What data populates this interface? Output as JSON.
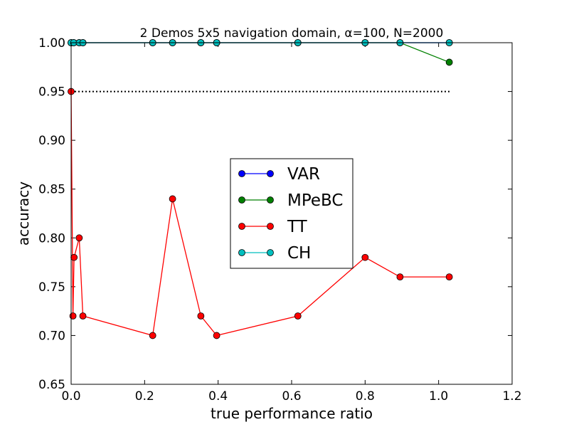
{
  "chart_data": {
    "type": "line",
    "title": "2 Demos 5x5 navigation domain, α=100, N=2000",
    "xlabel": "true performance ratio",
    "ylabel": "accuracy",
    "xlim": [
      0.0,
      1.2
    ],
    "ylim": [
      0.65,
      1.0
    ],
    "xticks": [
      "0.0",
      "0.2",
      "0.4",
      "0.6",
      "0.8",
      "1.0",
      "1.2"
    ],
    "yticks": [
      "0.65",
      "0.70",
      "0.75",
      "0.80",
      "0.85",
      "0.90",
      "0.95",
      "1.00"
    ],
    "grid": false,
    "legend_position": "center",
    "reference_line": {
      "y": 0.95,
      "x_range": [
        0.0,
        1.03
      ],
      "style": "dotted",
      "color": "#000000"
    },
    "series": [
      {
        "name": "VAR",
        "color": "#0000ff",
        "x": [
          0.0,
          0.007,
          0.022,
          0.032,
          0.222,
          0.276,
          0.353,
          0.396,
          0.617,
          0.8,
          0.895,
          1.029
        ],
        "y": [
          1.0,
          1.0,
          1.0,
          1.0,
          1.0,
          1.0,
          1.0,
          1.0,
          1.0,
          1.0,
          1.0,
          1.0
        ]
      },
      {
        "name": "MPeBC",
        "color": "#008000",
        "x": [
          0.0,
          0.007,
          0.022,
          0.032,
          0.222,
          0.276,
          0.353,
          0.396,
          0.617,
          0.8,
          0.895,
          1.029
        ],
        "y": [
          1.0,
          1.0,
          1.0,
          1.0,
          1.0,
          1.0,
          1.0,
          1.0,
          1.0,
          1.0,
          1.0,
          0.98
        ]
      },
      {
        "name": "TT",
        "color": "#ff0000",
        "x": [
          0.0,
          0.005,
          0.008,
          0.022,
          0.032,
          0.222,
          0.276,
          0.353,
          0.396,
          0.617,
          0.8,
          0.895,
          1.029
        ],
        "y": [
          0.95,
          0.72,
          0.78,
          0.8,
          0.72,
          0.7,
          0.84,
          0.72,
          0.7,
          0.72,
          0.78,
          0.76,
          0.76
        ]
      },
      {
        "name": "CH",
        "color": "#00bfbf",
        "x": [
          0.0,
          0.007,
          0.022,
          0.032,
          0.222,
          0.276,
          0.353,
          0.396,
          0.617,
          0.8,
          0.895,
          1.029
        ],
        "y": [
          1.0,
          1.0,
          1.0,
          1.0,
          1.0,
          1.0,
          1.0,
          1.0,
          1.0,
          1.0,
          1.0,
          1.0
        ]
      }
    ]
  }
}
